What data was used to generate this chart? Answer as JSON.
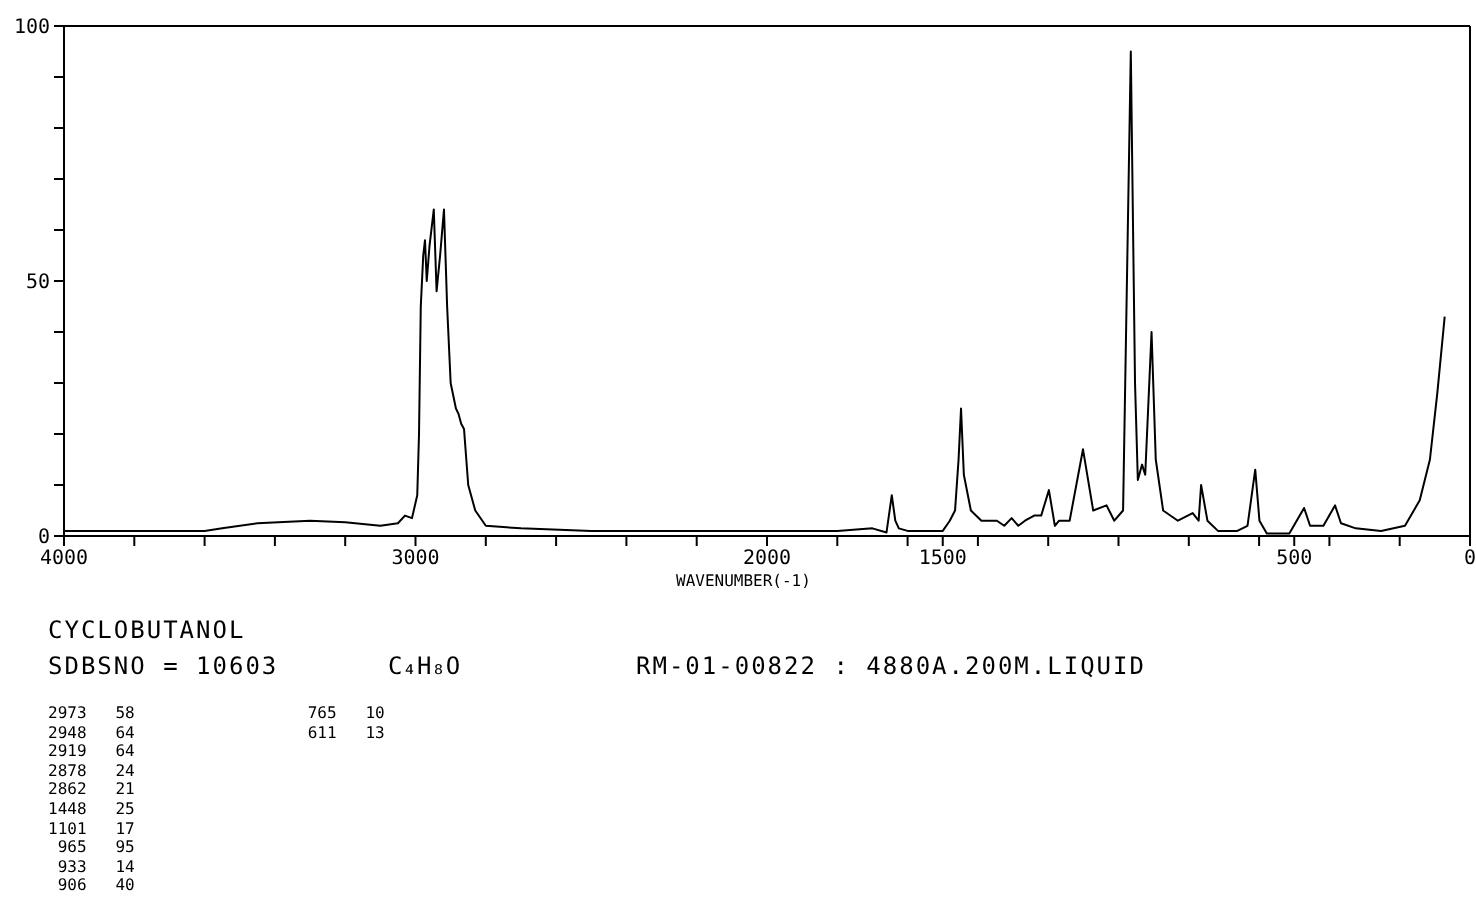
{
  "chart_data": {
    "type": "line",
    "title": "CYCLOBUTANOL",
    "xlabel": "WAVENUMBER(-1)",
    "annotations": [
      "SDBSNO = 10603",
      "C₄H₈O",
      "RM-01-00822 : 4880A.200M.LIQUID",
      "2973   58",
      "2948   64",
      "2919   64",
      "2878   24",
      "2862   21",
      "1448   25",
      "1101   17",
      " 965   95",
      " 933   14",
      " 906   40",
      " 765   10",
      " 611   13"
    ],
    "xlim": [
      4000,
      0
    ],
    "xticks": [
      4000,
      {
        "value": 3800,
        "label": null
      },
      {
        "value": 3600,
        "label": null
      },
      {
        "value": 3400,
        "label": null
      },
      {
        "value": 3200,
        "label": null
      },
      3000,
      {
        "value": 2800,
        "label": null
      },
      {
        "value": 2600,
        "label": null
      },
      {
        "value": 2400,
        "label": null
      },
      {
        "value": 2200,
        "label": null
      },
      2000,
      {
        "value": 1800,
        "label": null
      },
      {
        "value": 1600,
        "label": null
      },
      1500,
      {
        "value": 1400,
        "label": null
      },
      {
        "value": 1200,
        "label": null
      },
      {
        "value": 1000,
        "label": null
      },
      {
        "value": 800,
        "label": null
      },
      {
        "value": 600,
        "label": null
      },
      500,
      {
        "value": 400,
        "label": null
      },
      {
        "value": 200,
        "label": null
      },
      0
    ],
    "ylim": [
      0,
      100
    ],
    "yticks": [
      0,
      {
        "value": 10,
        "label": null
      },
      {
        "value": 20,
        "label": null
      },
      {
        "value": 30,
        "label": null
      },
      {
        "value": 40,
        "label": null
      },
      50,
      {
        "value": 60,
        "label": null
      },
      {
        "value": 70,
        "label": null
      },
      {
        "value": 80,
        "label": null
      },
      {
        "value": 90,
        "label": null
      },
      100
    ],
    "marker": "none",
    "line_style": "solid",
    "series": [
      {
        "color": "#000000",
        "x": [
          4000,
          3600,
          3550,
          3450,
          3300,
          3200,
          3100,
          3050,
          3030,
          3010,
          2995,
          2990,
          2985,
          2978,
          2973,
          2968,
          2960,
          2948,
          2940,
          2930,
          2919,
          2910,
          2900,
          2885,
          2878,
          2870,
          2862,
          2850,
          2830,
          2800,
          2700,
          2500,
          2300,
          2000,
          1800,
          1700,
          1660,
          1645,
          1635,
          1625,
          1600,
          1500,
          1480,
          1465,
          1455,
          1448,
          1440,
          1420,
          1390,
          1346,
          1325,
          1304,
          1285,
          1266,
          1240,
          1220,
          1198,
          1181,
          1169,
          1139,
          1101,
          1072,
          1034,
          1012,
          987,
          965,
          953,
          945,
          933,
          924,
          906,
          894,
          873,
          831,
          789,
          772,
          765,
          747,
          717,
          662,
          633,
          611,
          599,
          578,
          514,
          472,
          455,
          417,
          384,
          367,
          325,
          253,
          185,
          143,
          114,
          93,
          72
        ],
        "values": [
          1,
          1,
          1.5,
          2.5,
          3,
          2.7,
          2,
          2.5,
          4,
          3.5,
          8,
          20,
          45,
          55,
          58,
          50,
          57,
          64,
          48,
          55,
          64,
          45,
          30,
          25,
          24,
          22,
          21,
          10,
          5,
          2,
          1.5,
          1,
          1,
          1,
          1,
          1.5,
          0.7,
          8,
          3,
          1.5,
          1,
          1,
          3,
          5,
          15,
          25,
          12,
          5,
          3,
          3,
          2,
          3.5,
          2,
          3,
          4,
          4,
          9,
          2,
          3,
          3,
          17,
          5,
          6,
          3,
          5,
          95,
          30,
          11,
          14,
          12,
          40,
          15,
          5,
          3,
          4.5,
          3,
          10,
          3,
          1,
          1,
          2,
          13,
          3,
          0.5,
          0.5,
          5.5,
          2,
          2,
          6,
          2.5,
          1.5,
          1,
          2,
          7,
          15,
          28,
          43
        ]
      }
    ]
  }
}
